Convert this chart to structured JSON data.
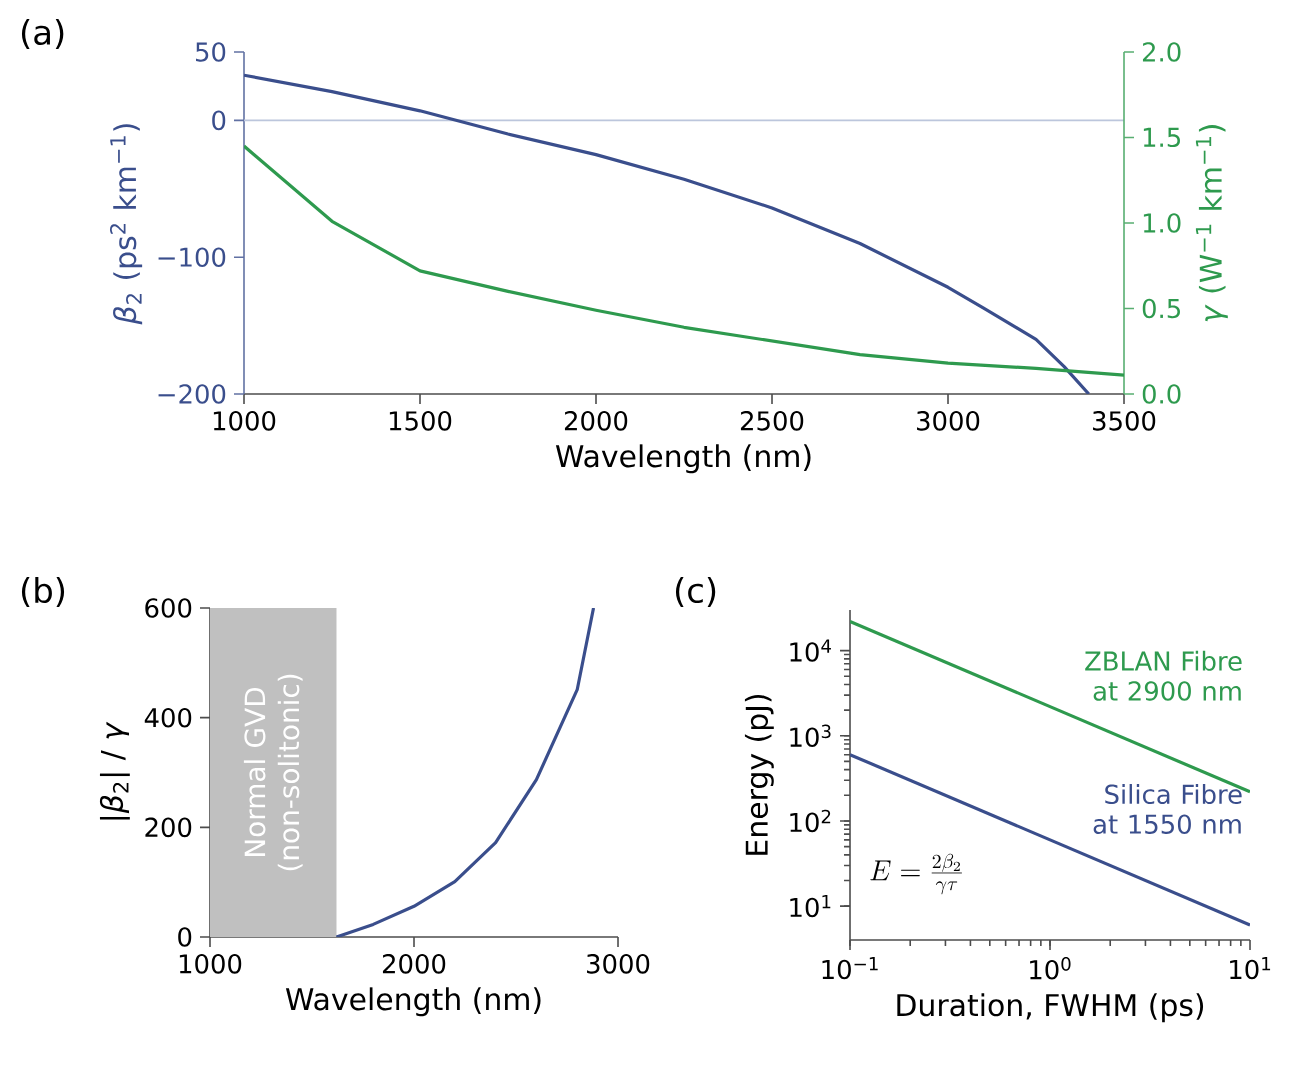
{
  "chart_data": [
    {
      "type": "line",
      "title": "(a)",
      "xlabel": "Wavelength (nm)",
      "ylabel": "*β*$_{2}$ (ps$^{2}$ km$^{−1}$)",
      "y2label": "*γ* (W$^{−1}$ km$^{−1}$)",
      "xlim": [
        1000,
        3500
      ],
      "xticks": [
        1000,
        1500,
        2000,
        2500,
        3000,
        3500
      ],
      "ylim": [
        -200,
        50
      ],
      "yticks": [
        {
          "value": -200,
          "label": "−200"
        },
        {
          "value": -100,
          "label": "−100"
        },
        0,
        50
      ],
      "y2lim": [
        0,
        2
      ],
      "y2ticks": [
        {
          "value": 0,
          "label": "0.0"
        },
        {
          "value": 0.5,
          "label": "0.5"
        },
        {
          "value": 1,
          "label": "1.0"
        },
        {
          "value": 1.5,
          "label": "1.5"
        },
        {
          "value": 2,
          "label": "2.0"
        }
      ],
      "ref_lines": [
        {
          "axis": "y",
          "value": 0,
          "color": "#bcc6dc"
        }
      ],
      "series": [
        {
          "color": "#3a4e8c",
          "x": [
            1000,
            1250,
            1500,
            1750,
            2000,
            2250,
            2500,
            2750,
            3000,
            3100,
            3250,
            3330,
            3400
          ],
          "values": [
            33,
            21,
            7,
            -10,
            -25,
            -43,
            -64,
            -90,
            -122,
            -137,
            -160,
            -180,
            -200
          ]
        },
        {
          "color": "#2e9a4e",
          "axis": "y2",
          "x": [
            1000,
            1250,
            1500,
            1750,
            2000,
            2250,
            2500,
            2750,
            3000,
            3250,
            3500
          ],
          "values": [
            1.45,
            1.01,
            0.72,
            0.6,
            0.49,
            0.39,
            0.31,
            0.23,
            0.18,
            0.15,
            0.11
          ]
        }
      ]
    },
    {
      "type": "line",
      "title": "(b)",
      "xlabel": "Wavelength (nm)",
      "ylabel": "|*β*$_{2}$| / *γ*",
      "xlim": [
        1000,
        3000
      ],
      "xticks": [
        1000,
        2000,
        3000
      ],
      "ylim": [
        0,
        600
      ],
      "yticks": [
        0,
        200,
        400,
        600
      ],
      "bands": [
        {
          "axis": "x",
          "from": 1000,
          "to": 1620,
          "label": "Normal GVD (non-solitonic)",
          "color": "#c0c0c0"
        }
      ],
      "series": [
        {
          "color": "#3a4e8c",
          "x": [
            1620,
            1800,
            2000,
            2200,
            2400,
            2600,
            2800,
            2880
          ],
          "values": [
            0,
            23,
            56,
            101,
            172,
            287,
            451,
            600
          ]
        }
      ]
    },
    {
      "type": "line",
      "title": "(c)",
      "xlabel": "Duration, FWHM (ps)",
      "ylabel": "Energy (pJ)",
      "log": "xy",
      "xlim": [
        0.1,
        10
      ],
      "xticks": [
        {
          "value": 0.1,
          "label": "10$^{−1}$"
        },
        {
          "value": 1,
          "label": "10$^{0}$"
        },
        {
          "value": 10,
          "label": "10$^{1}$"
        }
      ],
      "ylim": [
        4,
        30000
      ],
      "yticks": [
        {
          "value": 10,
          "label": "10$^{1}$"
        },
        {
          "value": 100,
          "label": "10$^{2}$"
        },
        {
          "value": 1000,
          "label": "10$^{3}$"
        },
        {
          "value": 10000,
          "label": "10$^{4}$"
        }
      ],
      "annotations": [
        "E=\\frac{2\\beta_2}{\\gamma\\tau}"
      ],
      "series": [
        {
          "name": "ZBLAN Fibre at 2900 nm",
          "color": "#2e9a4e",
          "x": [
            0.1,
            10
          ],
          "values": [
            22000,
            220
          ]
        },
        {
          "name": "Silica Fibre at 1550 nm",
          "color": "#3a4e8c",
          "x": [
            0.1,
            10
          ],
          "values": [
            600,
            6
          ]
        }
      ]
    }
  ]
}
